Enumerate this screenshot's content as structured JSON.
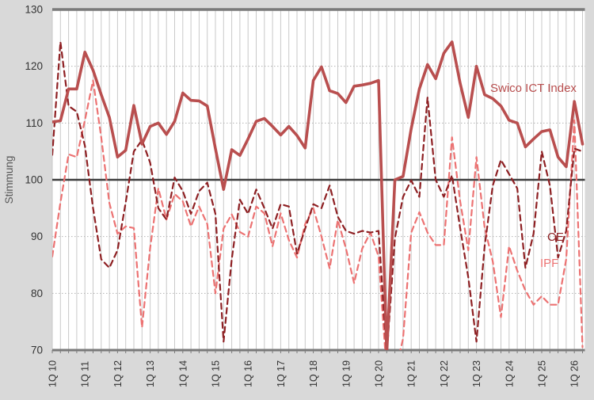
{
  "figure": {
    "background_color": "#d9d9d9",
    "plot_background_color": "#ffffff",
    "grid_vertical_color": "#c9c9c9",
    "grid_horizontal_color": "#b3b3b3",
    "border_color": "#7a7a7a",
    "baseline_color": "#3d3d3d",
    "tick_label_color": "#333333",
    "axis_title_color": "#595959"
  },
  "chart_data": {
    "type": "line",
    "title": "",
    "xlabel": "",
    "ylabel": "Stimmung",
    "ylim": [
      70,
      130
    ],
    "yticks": [
      130,
      120,
      110,
      100,
      90,
      80,
      70
    ],
    "baseline": 100,
    "grid": "quarterly vertical lines, dotted horizontal lines at 80/90/110/120, bold line at 100",
    "legend_position": "inline annotations at right side of plot",
    "frequency": "quarterly",
    "x_start": "1Q 2010",
    "x_end": "2Q 2026",
    "x_tick_labels": [
      "1Q 10",
      "1Q 11",
      "1Q 12",
      "1Q 13",
      "1Q 14",
      "1Q 15",
      "1Q 16",
      "1Q 17",
      "1Q 18",
      "1Q 19",
      "1Q 20",
      "1Q 21",
      "1Q 22",
      "1Q 23",
      "1Q 24",
      "1Q 25",
      "1Q 26"
    ],
    "series": [
      {
        "name": "Swico ICT Index",
        "color": "#b94f4f",
        "style": "solid",
        "width": 3.6,
        "values": [
          110.2,
          110.4,
          116,
          116,
          122.5,
          119.3,
          115,
          111,
          104,
          105.2,
          113.1,
          106.3,
          109.4,
          110,
          108,
          110.3,
          115.3,
          114,
          113.9,
          113,
          105.5,
          98.3,
          105.3,
          104.3,
          107.2,
          110.3,
          110.8,
          109.4,
          107.9,
          109.4,
          107.8,
          105.6,
          117.5,
          119.9,
          115.7,
          115.2,
          113.6,
          116.5,
          116.7,
          117,
          117.5,
          69.3,
          100,
          100.6,
          109,
          116,
          120.3,
          117.8,
          122.3,
          124.3,
          117,
          111,
          120,
          115,
          114.3,
          113,
          110.5,
          110,
          105.8,
          107.2,
          108.5,
          108.8,
          104,
          102.3,
          113.8,
          106.3
        ]
      },
      {
        "name": "CE",
        "color": "#8e2023",
        "style": "dashed",
        "width": 2.2,
        "values": [
          104.4,
          124.3,
          113,
          112,
          106,
          95,
          86,
          84.5,
          87.6,
          96,
          105,
          107,
          103,
          95,
          93,
          100.4,
          98,
          94,
          98,
          99.5,
          94,
          71.5,
          86,
          96.5,
          94,
          98.3,
          95,
          91.4,
          95.7,
          95.3,
          87,
          91.4,
          95.7,
          95,
          99,
          93.5,
          91,
          90.5,
          91,
          90.7,
          91,
          69,
          89.7,
          97,
          99.9,
          97,
          114.5,
          100,
          97,
          100.8,
          91.5,
          82.8,
          71.5,
          88.3,
          99,
          103.5,
          101,
          98.5,
          84.5,
          90.5,
          105,
          99,
          86.3,
          91,
          105.5,
          105
        ]
      },
      {
        "name": "IPF",
        "color": "#ec7272",
        "style": "dashed",
        "width": 2.2,
        "values": [
          86.5,
          96,
          104.5,
          104,
          110.5,
          117.5,
          107.5,
          95.9,
          90.5,
          91.8,
          91.5,
          74,
          88,
          98.5,
          93,
          97.5,
          96.2,
          91.8,
          95.3,
          92.2,
          80,
          91.4,
          93.9,
          90.8,
          90,
          95.3,
          94.1,
          88.3,
          94.1,
          89.4,
          86.3,
          92.2,
          95,
          90,
          84.4,
          92.9,
          87.9,
          81.8,
          87.9,
          90.7,
          86.5,
          66,
          66,
          72,
          90.7,
          94.3,
          90.7,
          88.5,
          88.5,
          107.5,
          96.2,
          87.6,
          104,
          91.6,
          85.6,
          75.8,
          88.3,
          84,
          80.5,
          78,
          79.5,
          78,
          78,
          86,
          110.5,
          70.5
        ]
      }
    ],
    "annotations": [
      {
        "text": "Swico ICT Index",
        "color": "#b94f4f"
      },
      {
        "text": "CE",
        "color": "#8e2023"
      },
      {
        "text": "IPF",
        "color": "#ec7272"
      }
    ]
  }
}
